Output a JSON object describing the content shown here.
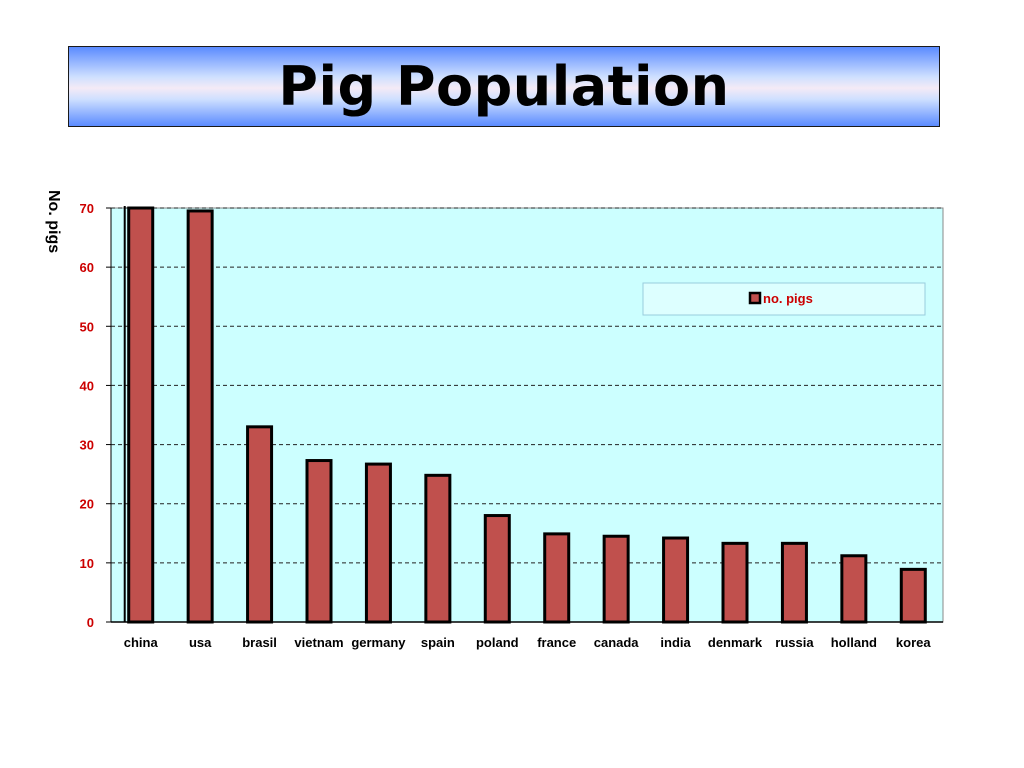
{
  "slide": {
    "title": "Pig Population"
  },
  "chart_data": {
    "type": "bar",
    "ylabel": "No. pigs",
    "ylim": [
      0,
      70
    ],
    "yticks": [
      0,
      10,
      20,
      30,
      40,
      50,
      60,
      70
    ],
    "grid": true,
    "legend": {
      "placement": "top-right",
      "entries": [
        "no. pigs"
      ]
    },
    "categories": [
      "china",
      "usa",
      "brasil",
      "vietnam",
      "germany",
      "spain",
      "poland",
      "france",
      "canada",
      "india",
      "denmark",
      "russia",
      "holland",
      "korea"
    ],
    "series": [
      {
        "name": "no. pigs",
        "values": [
          70,
          69.5,
          33,
          27.3,
          26.7,
          24.8,
          18,
          14.9,
          14.5,
          14.2,
          13.3,
          13.3,
          11.2,
          8.9
        ]
      }
    ],
    "colors": {
      "bar": "#c0504d",
      "plot_bg": "#ccffff",
      "tick_label": "#cc0000"
    }
  }
}
